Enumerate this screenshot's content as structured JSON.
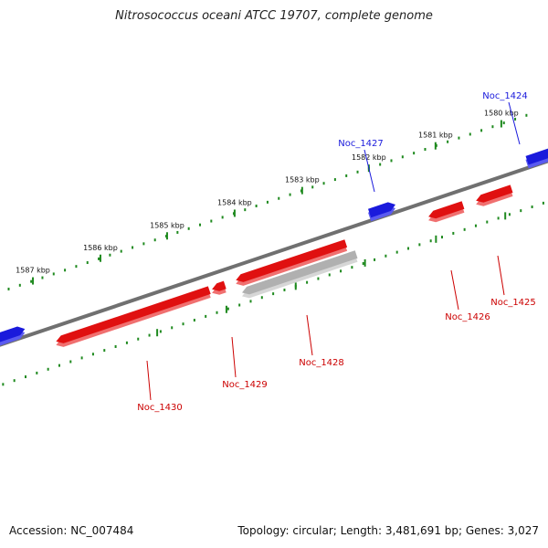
{
  "title": "Nitrosococcus oceani ATCC 19707, complete genome",
  "accession_text": "Accession: NC_007484",
  "summary_text": "Topology: circular; Length: 3,481,691 bp; Genes: 3,027",
  "colors": {
    "forward_gene": "#1a1adc",
    "reverse_gene": "#e01010",
    "pseudogene": "#b0b0b0",
    "backbone": "#707070",
    "tick": "#1f8a1f",
    "forward_label": "#1a1adc",
    "reverse_label": "#cc0000"
  },
  "scale": {
    "unit": "kbp",
    "ticks_kbp": [
      1587,
      1586,
      1585,
      1584,
      1583,
      1582,
      1581,
      1580
    ]
  },
  "genes": [
    {
      "name": "Noc_1424",
      "strand": "forward",
      "type": "gene"
    },
    {
      "name": "Noc_1425",
      "strand": "reverse",
      "type": "gene"
    },
    {
      "name": "Noc_1426",
      "strand": "reverse",
      "type": "gene"
    },
    {
      "name": "Noc_1427",
      "strand": "forward",
      "type": "gene"
    },
    {
      "name": "Noc_1428",
      "strand": "reverse",
      "type": "pseudogene"
    },
    {
      "name": "Noc_1429",
      "strand": "reverse",
      "type": "gene"
    },
    {
      "name": "Noc_1430",
      "strand": "reverse",
      "type": "gene"
    }
  ]
}
